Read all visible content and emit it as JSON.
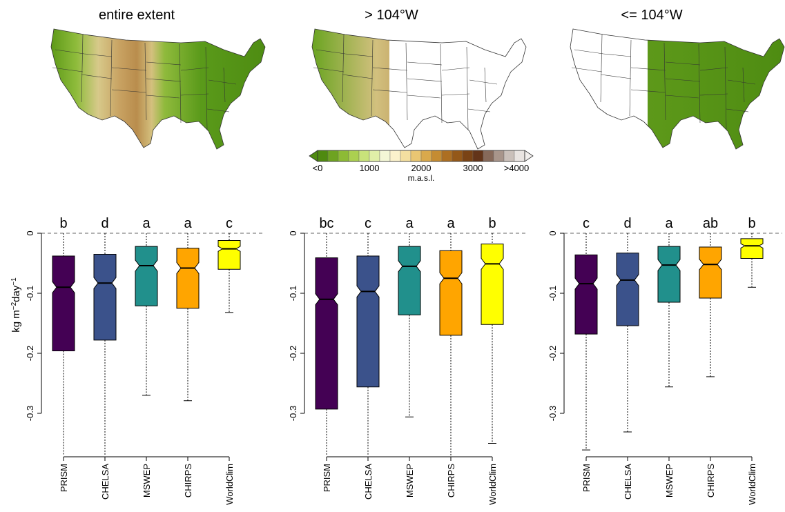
{
  "maps": {
    "titles": [
      "entire extent",
      "> 104°W",
      "<= 104°W"
    ]
  },
  "legend": {
    "tick_labels": [
      "<0",
      "1000",
      "2000",
      "3000",
      ">4000"
    ],
    "unit": "m.a.s.l.",
    "colors": [
      "#4f8a10",
      "#6ea321",
      "#8dbb35",
      "#abd050",
      "#c8e37a",
      "#e1efa8",
      "#f3f6d6",
      "#fbf1cc",
      "#f4dfa0",
      "#e9c673",
      "#d9a94c",
      "#c58c32",
      "#ad6f22",
      "#945819",
      "#7a4315",
      "#633419",
      "#86695a",
      "#a8958b",
      "#cac0ba",
      "#e9e4e1"
    ]
  },
  "chart_data": [
    {
      "type": "box",
      "title": "entire extent",
      "ylabel": "kg m⁻²day⁻¹",
      "ylim": [
        -0.37,
        0.0
      ],
      "yticks": [
        "0",
        "-0.1",
        "-0.2",
        "-0.3"
      ],
      "reference_line": 0,
      "categories": [
        "PRISM",
        "CHELSA",
        "MSWEP",
        "CHIRPS",
        "WorldClim"
      ],
      "colors": [
        "#440154",
        "#3b528b",
        "#21908c",
        "#ffa500",
        "#ffff00"
      ],
      "letters": [
        "b",
        "d",
        "a",
        "a",
        "c"
      ],
      "boxes": [
        {
          "whisker_low": -0.37,
          "q1": -0.196,
          "median": -0.09,
          "q3": -0.038,
          "whisker_high": 0.0
        },
        {
          "whisker_low": -0.37,
          "q1": -0.178,
          "median": -0.083,
          "q3": -0.035,
          "whisker_high": 0.0
        },
        {
          "whisker_low": -0.27,
          "q1": -0.121,
          "median": -0.054,
          "q3": -0.022,
          "whisker_high": 0.0
        },
        {
          "whisker_low": -0.279,
          "q1": -0.125,
          "median": -0.058,
          "q3": -0.025,
          "whisker_high": 0.0
        },
        {
          "whisker_low": -0.132,
          "q1": -0.06,
          "median": -0.026,
          "q3": -0.012,
          "whisker_high": 0.0
        }
      ]
    },
    {
      "type": "box",
      "title": "> 104°W",
      "ylim": [
        -0.37,
        0.0
      ],
      "yticks": [
        "0",
        "-0.1",
        "-0.2",
        "-0.3"
      ],
      "reference_line": 0,
      "categories": [
        "PRISM",
        "CHELSA",
        "MSWEP",
        "CHIRPS",
        "WorldClim"
      ],
      "colors": [
        "#440154",
        "#3b528b",
        "#21908c",
        "#ffa500",
        "#ffff00"
      ],
      "letters": [
        "bc",
        "c",
        "a",
        "a",
        "b"
      ],
      "boxes": [
        {
          "whisker_low": -0.37,
          "q1": -0.293,
          "median": -0.11,
          "q3": -0.041,
          "whisker_high": 0.0
        },
        {
          "whisker_low": -0.37,
          "q1": -0.256,
          "median": -0.097,
          "q3": -0.038,
          "whisker_high": 0.0
        },
        {
          "whisker_low": -0.306,
          "q1": -0.136,
          "median": -0.055,
          "q3": -0.022,
          "whisker_high": 0.0
        },
        {
          "whisker_low": -0.37,
          "q1": -0.17,
          "median": -0.075,
          "q3": -0.029,
          "whisker_high": 0.0
        },
        {
          "whisker_low": -0.35,
          "q1": -0.152,
          "median": -0.051,
          "q3": -0.018,
          "whisker_high": 0.0
        }
      ]
    },
    {
      "type": "box",
      "title": "<= 104°W",
      "ylim": [
        -0.37,
        0.0
      ],
      "yticks": [
        "0",
        "-0.1",
        "-0.2",
        "-0.3"
      ],
      "reference_line": 0,
      "categories": [
        "PRISM",
        "CHELSA",
        "MSWEP",
        "CHIRPS",
        "WorldClim"
      ],
      "colors": [
        "#440154",
        "#3b528b",
        "#21908c",
        "#ffa500",
        "#ffff00"
      ],
      "letters": [
        "c",
        "d",
        "a",
        "ab",
        "b"
      ],
      "boxes": [
        {
          "whisker_low": -0.361,
          "q1": -0.168,
          "median": -0.084,
          "q3": -0.036,
          "whisker_high": 0.0
        },
        {
          "whisker_low": -0.331,
          "q1": -0.154,
          "median": -0.078,
          "q3": -0.033,
          "whisker_high": 0.0
        },
        {
          "whisker_low": -0.256,
          "q1": -0.115,
          "median": -0.053,
          "q3": -0.022,
          "whisker_high": 0.0
        },
        {
          "whisker_low": -0.239,
          "q1": -0.108,
          "median": -0.052,
          "q3": -0.023,
          "whisker_high": 0.0
        },
        {
          "whisker_low": -0.09,
          "q1": -0.042,
          "median": -0.021,
          "q3": -0.009,
          "whisker_high": 0.0
        }
      ]
    }
  ]
}
